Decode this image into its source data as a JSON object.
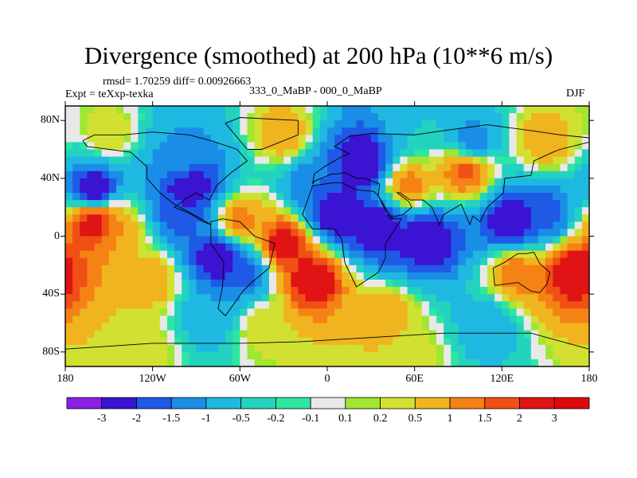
{
  "chart_data": {
    "type": "heatmap",
    "title": "Divergence (smoothed) at 200 hPa (10**6 m/s)",
    "rmsd_text": "rmsd= 1.70259 diff= 0.00926663",
    "experiment_text": "Expt = teXxp-texka",
    "difference_label": "333_0_MaBP - 000_0_MaBP",
    "season": "DJF",
    "projection": "cylindrical equidistant, global",
    "x_range": [
      -180,
      180
    ],
    "y_range": [
      -90,
      90
    ],
    "x_tick_values": [
      -180,
      -120,
      -60,
      0,
      60,
      120,
      180
    ],
    "x_tick_labels": [
      "180",
      "120W",
      "60W",
      "0",
      "60E",
      "120E",
      "180"
    ],
    "y_tick_values": [
      80,
      40,
      0,
      -40,
      -80
    ],
    "y_tick_labels": [
      "80N",
      "40N",
      "0",
      "40S",
      "80S"
    ],
    "colorbar": {
      "boundary_labels": [
        "-3",
        "-2",
        "-1.5",
        "-1",
        "-0.5",
        "-0.2",
        "-0.1",
        "0.1",
        "0.2",
        "0.5",
        "1",
        "1.5",
        "2",
        "3"
      ],
      "boundaries": [
        -3,
        -2,
        -1.5,
        -1,
        -0.5,
        -0.2,
        -0.1,
        0.1,
        0.2,
        0.5,
        1,
        1.5,
        2,
        3
      ],
      "colors": [
        "#8a1fe6",
        "#3a14d2",
        "#1f5ae6",
        "#1a8ee6",
        "#1fb8e0",
        "#24d2c0",
        "#2ee6a0",
        "#e8e8e8",
        "#a0e632",
        "#d2e032",
        "#f0b41e",
        "#f58214",
        "#f05014",
        "#e01414",
        "#dc0a0a"
      ]
    },
    "field_features": [
      {
        "lon": -160,
        "lat": 32,
        "value": -3
      },
      {
        "lon": -95,
        "lat": 36,
        "value": -3
      },
      {
        "lon": -100,
        "lat": 50,
        "value": -1
      },
      {
        "lon": 25,
        "lat": 52,
        "value": -3
      },
      {
        "lon": 55,
        "lat": 35,
        "value": 1.5
      },
      {
        "lon": 95,
        "lat": 45,
        "value": 2
      },
      {
        "lon": 100,
        "lat": 65,
        "value": -1.5
      },
      {
        "lon": -10,
        "lat": 35,
        "value": -1.5
      },
      {
        "lon": 5,
        "lat": 15,
        "value": -3
      },
      {
        "lon": -60,
        "lat": 10,
        "value": 1.5
      },
      {
        "lon": -160,
        "lat": 10,
        "value": 3
      },
      {
        "lon": -145,
        "lat": 5,
        "value": 1
      },
      {
        "lon": -100,
        "lat": 15,
        "value": -2
      },
      {
        "lon": -75,
        "lat": -15,
        "value": -3
      },
      {
        "lon": -55,
        "lat": -25,
        "value": -2
      },
      {
        "lon": -30,
        "lat": -5,
        "value": 3
      },
      {
        "lon": -10,
        "lat": -30,
        "value": 3
      },
      {
        "lon": 35,
        "lat": 5,
        "value": -3
      },
      {
        "lon": 70,
        "lat": -2,
        "value": -3
      },
      {
        "lon": 125,
        "lat": 10,
        "value": -3
      },
      {
        "lon": 150,
        "lat": 15,
        "value": -2
      },
      {
        "lon": 130,
        "lat": -25,
        "value": 1.5
      },
      {
        "lon": 170,
        "lat": -25,
        "value": 3
      },
      {
        "lon": -120,
        "lat": -30,
        "value": 1
      },
      {
        "lon": -80,
        "lat": -55,
        "value": -1
      },
      {
        "lon": 40,
        "lat": -55,
        "value": 1
      },
      {
        "lon": 110,
        "lat": -62,
        "value": -1
      },
      {
        "lon": -30,
        "lat": 70,
        "value": 1
      },
      {
        "lon": 150,
        "lat": 65,
        "value": 1
      },
      {
        "lon": -150,
        "lat": 70,
        "value": 0.5
      },
      {
        "lon": 60,
        "lat": 75,
        "value": -0.5
      },
      {
        "lon": -130,
        "lat": -80,
        "value": 0.5
      },
      {
        "lon": 60,
        "lat": -82,
        "value": 0.3
      },
      {
        "lon": -45,
        "lat": -62,
        "value": 0.5
      }
    ]
  }
}
